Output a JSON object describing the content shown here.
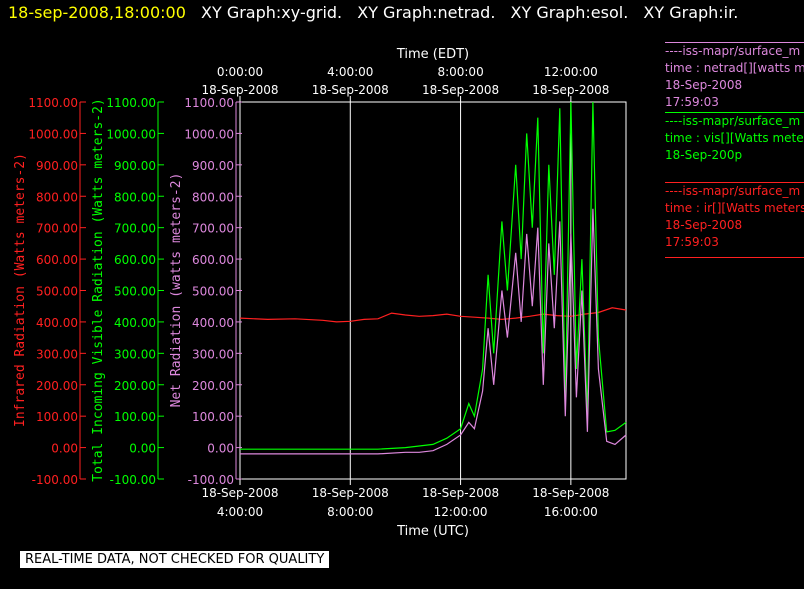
{
  "header": {
    "timestamp": "18-sep-2008,18:00:00",
    "graphs": [
      "XY Graph:xy-grid.",
      "XY Graph:netrad.",
      "XY Graph:esol.",
      "XY Graph:ir."
    ]
  },
  "legend": [
    {
      "line1": "----iss-mapr/surface_m",
      "line2": "time : netrad[][watts m",
      "line3": "18-Sep-2008",
      "line4": "17:59:03",
      "color": "#dd88dd"
    },
    {
      "line1": "----iss-mapr/surface_m",
      "line2": "time : vis[][Watts mete",
      "line3": "18-Sep-200p",
      "line4": "",
      "color": "#00ff00"
    },
    {
      "line1": "----iss-mapr/surface_m",
      "line2": "time : ir[][Watts meters",
      "line3": "18-Sep-2008",
      "line4": "17:59:03",
      "color": "#ff2020"
    }
  ],
  "footer": {
    "note": "REAL-TIME DATA, NOT CHECKED FOR QUALITY"
  },
  "chart_data": {
    "type": "line",
    "xlabel_bottom": "Time (UTC)",
    "xlabel_top": "Time (EDT)",
    "x_range_utc_hours": [
      4.0,
      18.0
    ],
    "xticks_bottom": [
      {
        "hour": 4,
        "date": "18-Sep-2008",
        "time": "4:00:00"
      },
      {
        "hour": 8,
        "date": "18-Sep-2008",
        "time": "8:00:00"
      },
      {
        "hour": 12,
        "date": "18-Sep-2008",
        "time": "12:00:00"
      },
      {
        "hour": 16,
        "date": "18-Sep-2008",
        "time": "16:00:00"
      }
    ],
    "xticks_top": [
      {
        "hour": 4,
        "time": "0:00:00",
        "date": "18-Sep-2008"
      },
      {
        "hour": 8,
        "time": "4:00:00",
        "date": "18-Sep-2008"
      },
      {
        "hour": 12,
        "time": "8:00:00",
        "date": "18-Sep-2008"
      },
      {
        "hour": 16,
        "time": "12:00:00",
        "date": "18-Sep-2008"
      }
    ],
    "ylim": [
      -100,
      1100
    ],
    "yticks": [
      "-100.00",
      "0.00",
      "100.00",
      "200.00",
      "300.00",
      "400.00",
      "500.00",
      "600.00",
      "700.00",
      "800.00",
      "900.00",
      "1000.00",
      "1100.00"
    ],
    "axes": [
      {
        "label": "Infrared Radiation (Watts meters-2)",
        "color": "#ff2020"
      },
      {
        "label": "Total Incoming Visible Radiation (Watts meters-2)",
        "color": "#00ff00"
      },
      {
        "label": "Net Radiation (watts meters-2)",
        "color": "#dd88dd"
      }
    ],
    "series": [
      {
        "name": "ir",
        "color": "#ff2020",
        "x": [
          4.0,
          5.0,
          6.0,
          7.0,
          7.5,
          8.0,
          8.5,
          9.0,
          9.5,
          10.0,
          10.5,
          11.0,
          11.5,
          12.0,
          12.5,
          13.0,
          13.5,
          14.0,
          14.5,
          15.0,
          15.5,
          16.0,
          16.5,
          17.0,
          17.5,
          18.0
        ],
        "y": [
          412,
          408,
          410,
          405,
          400,
          402,
          408,
          410,
          428,
          422,
          418,
          420,
          425,
          418,
          415,
          412,
          408,
          412,
          418,
          425,
          420,
          418,
          425,
          430,
          445,
          438
        ]
      },
      {
        "name": "vis",
        "color": "#00ff00",
        "x": [
          4.0,
          6.0,
          8.0,
          9.0,
          10.0,
          10.5,
          11.0,
          11.5,
          12.0,
          12.3,
          12.5,
          12.8,
          13.0,
          13.2,
          13.5,
          13.7,
          14.0,
          14.2,
          14.4,
          14.6,
          14.8,
          15.0,
          15.2,
          15.4,
          15.6,
          15.8,
          16.0,
          16.2,
          16.4,
          16.6,
          16.8,
          17.0,
          17.3,
          17.6,
          18.0
        ],
        "y": [
          -5,
          -5,
          -5,
          -5,
          0,
          5,
          10,
          30,
          60,
          140,
          100,
          250,
          550,
          300,
          720,
          500,
          900,
          600,
          1000,
          700,
          1050,
          300,
          900,
          550,
          1080,
          150,
          1100,
          250,
          600,
          100,
          1100,
          350,
          50,
          55,
          80
        ]
      },
      {
        "name": "netrad",
        "color": "#dd88dd",
        "x": [
          4.0,
          6.0,
          8.0,
          9.0,
          10.0,
          10.5,
          11.0,
          11.5,
          12.0,
          12.3,
          12.5,
          12.8,
          13.0,
          13.2,
          13.5,
          13.7,
          14.0,
          14.2,
          14.4,
          14.6,
          14.8,
          15.0,
          15.2,
          15.4,
          15.6,
          15.8,
          16.0,
          16.2,
          16.4,
          16.6,
          16.8,
          17.0,
          17.3,
          17.6,
          18.0
        ],
        "y": [
          -20,
          -20,
          -20,
          -20,
          -15,
          -15,
          -10,
          10,
          40,
          80,
          60,
          180,
          380,
          200,
          500,
          350,
          620,
          400,
          680,
          450,
          700,
          200,
          650,
          380,
          720,
          100,
          680,
          160,
          500,
          50,
          760,
          250,
          20,
          10,
          40
        ]
      }
    ]
  }
}
